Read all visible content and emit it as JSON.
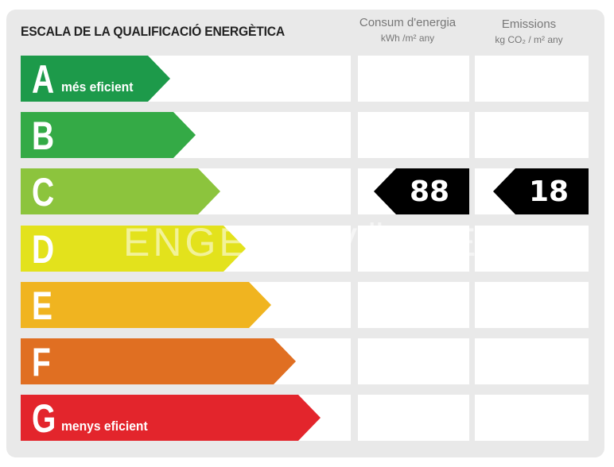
{
  "title": "ESCALA DE LA QUALIFICACIÓ ENERGÈTICA",
  "columns": {
    "consumption": {
      "heading": "Consum d'energia",
      "unit": "kWh /m² any"
    },
    "emissions": {
      "heading": "Emissions",
      "unit": "kg CO₂ / m² any"
    }
  },
  "classes": [
    {
      "letter": "A",
      "note": "més eficient",
      "color": "#1d9a4a"
    },
    {
      "letter": "B",
      "note": "",
      "color": "#34aa46"
    },
    {
      "letter": "C",
      "note": "",
      "color": "#8cc43d"
    },
    {
      "letter": "D",
      "note": "",
      "color": "#e3e21c"
    },
    {
      "letter": "E",
      "note": "",
      "color": "#f0b420"
    },
    {
      "letter": "F",
      "note": "",
      "color": "#e06f22"
    },
    {
      "letter": "G",
      "note": "menys eficient",
      "color": "#e3252c"
    }
  ],
  "rating": {
    "consumption": {
      "class": "C",
      "value": "88"
    },
    "emissions": {
      "class": "C",
      "value": "18"
    }
  },
  "watermark": "ENGEL & VÖLKERS"
}
